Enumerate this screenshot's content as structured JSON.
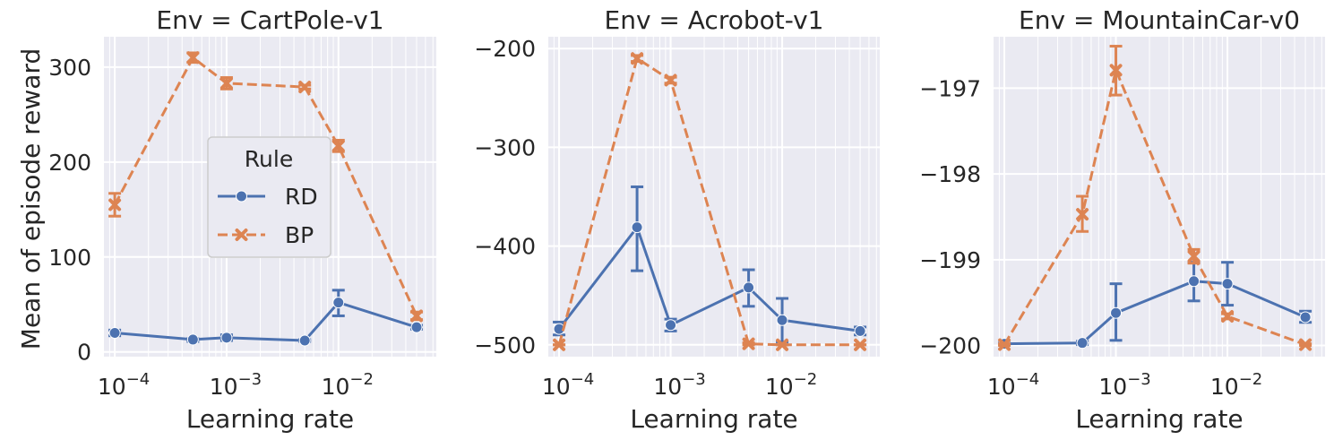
{
  "figure": {
    "ylabel": "Mean of episode reward",
    "xlabel": "Learning rate",
    "legend": {
      "title": "Rule",
      "entries": [
        {
          "name": "RD",
          "color": "#4c72b0",
          "marker": "circle",
          "dash": "solid"
        },
        {
          "name": "BP",
          "color": "#dd8452",
          "marker": "x",
          "dash": "dashed"
        }
      ],
      "placement": "center of first panel"
    },
    "colors": {
      "panel_bg": "#eaeaf2",
      "grid": "#ffffff",
      "text": "#262626"
    }
  },
  "chart_data": [
    {
      "type": "line",
      "title": "Env = CartPole-v1",
      "xscale": "log",
      "xlim": [
        8e-05,
        0.075
      ],
      "xticks": [
        0.0001,
        0.001,
        0.01
      ],
      "xtick_labels": [
        "10",
        "10",
        "10"
      ],
      "xtick_exponents": [
        "−4",
        "−3",
        "−2"
      ],
      "ylim": [
        -5,
        332
      ],
      "yticks": [
        0,
        100,
        200,
        300
      ],
      "ytick_labels": [
        "0",
        "100",
        "200",
        "300"
      ],
      "grid": true,
      "x": [
        0.0001,
        0.0005,
        0.001,
        0.005,
        0.01,
        0.05
      ],
      "series": [
        {
          "name": "RD",
          "values": [
            20,
            13,
            15,
            12,
            52,
            26
          ],
          "err_low": [
            17,
            11,
            12,
            11,
            38,
            24
          ],
          "err_high": [
            23,
            14,
            18,
            13,
            65,
            28
          ]
        },
        {
          "name": "BP",
          "values": [
            155,
            310,
            283,
            279,
            217,
            38
          ],
          "err_low": [
            143,
            305,
            277,
            277,
            211,
            34
          ],
          "err_high": [
            167,
            315,
            289,
            281,
            223,
            42
          ]
        }
      ]
    },
    {
      "type": "line",
      "title": "Env = Acrobot-v1",
      "xscale": "log",
      "xlim": [
        8e-05,
        0.075
      ],
      "xticks": [
        0.0001,
        0.001,
        0.01
      ],
      "xtick_labels": [
        "10",
        "10",
        "10"
      ],
      "xtick_exponents": [
        "−4",
        "−3",
        "−2"
      ],
      "ylim": [
        -512,
        -188
      ],
      "yticks": [
        -500,
        -400,
        -300,
        -200
      ],
      "ytick_labels": [
        "−500",
        "−400",
        "−300",
        "−200"
      ],
      "grid": true,
      "x": [
        0.0001,
        0.0005,
        0.001,
        0.005,
        0.01,
        0.05
      ],
      "series": [
        {
          "name": "RD",
          "values": [
            -484,
            -381,
            -480,
            -442,
            -475,
            -486
          ],
          "err_low": [
            -490,
            -425,
            -486,
            -461,
            -497,
            -490
          ],
          "err_high": [
            -477,
            -340,
            -474,
            -424,
            -453,
            -482
          ]
        },
        {
          "name": "BP",
          "values": [
            -500,
            -210,
            -232,
            -499,
            -500,
            -500
          ],
          "err_low": [
            -500,
            -213,
            -235,
            -500,
            -500,
            -500
          ],
          "err_high": [
            -500,
            -207,
            -229,
            -498,
            -500,
            -500
          ]
        }
      ]
    },
    {
      "type": "line",
      "title": "Env = MountainCar-v0",
      "xscale": "log",
      "xlim": [
        8e-05,
        0.075
      ],
      "xticks": [
        0.0001,
        0.001,
        0.01
      ],
      "xtick_labels": [
        "10",
        "10",
        "10"
      ],
      "xtick_exponents": [
        "−4",
        "−3",
        "−2"
      ],
      "ylim": [
        -200.13,
        -196.4
      ],
      "yticks": [
        -200,
        -199,
        -198,
        -197
      ],
      "ytick_labels": [
        "−200",
        "−199",
        "−198",
        "−197"
      ],
      "grid": true,
      "x": [
        0.0001,
        0.0005,
        0.001,
        0.005,
        0.01,
        0.05
      ],
      "series": [
        {
          "name": "RD",
          "values": [
            -199.98,
            -199.97,
            -199.62,
            -199.25,
            -199.28,
            -199.67
          ],
          "err_low": [
            -199.99,
            -199.99,
            -199.94,
            -199.48,
            -199.53,
            -199.73
          ],
          "err_high": [
            -199.97,
            -199.95,
            -199.28,
            -199.03,
            -199.03,
            -199.6
          ]
        },
        {
          "name": "BP",
          "values": [
            -199.99,
            -198.47,
            -196.79,
            -198.96,
            -199.66,
            -199.99
          ],
          "err_low": [
            -200.0,
            -198.67,
            -197.08,
            -199.04,
            -199.69,
            -200.0
          ],
          "err_high": [
            -199.98,
            -198.26,
            -196.51,
            -198.88,
            -199.63,
            -199.98
          ]
        }
      ]
    }
  ]
}
